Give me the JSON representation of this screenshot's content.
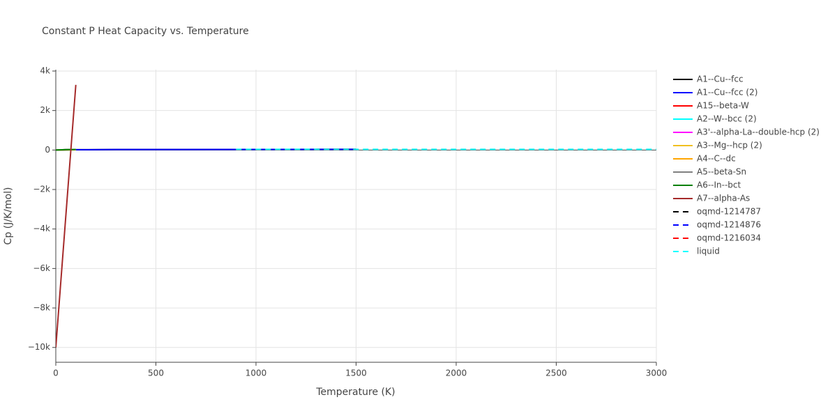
{
  "chart_data": {
    "type": "line",
    "title": "Constant P Heat Capacity vs. Temperature",
    "x_label": "Temperature (K)",
    "y_label": "Cp (J/K/mol)",
    "xlim": [
      0,
      3000
    ],
    "ylim": [
      -10750,
      4070
    ],
    "xticks": [
      0,
      500,
      1000,
      1500,
      2000,
      2500,
      3000
    ],
    "yticks": [
      {
        "value": -10000,
        "label": "−10k"
      },
      {
        "value": -8000,
        "label": "−8k"
      },
      {
        "value": -6000,
        "label": "−6k"
      },
      {
        "value": -4000,
        "label": "−4k"
      },
      {
        "value": -2000,
        "label": "−2k"
      },
      0,
      {
        "value": 2000,
        "label": "2k"
      },
      {
        "value": 4000,
        "label": "4k"
      }
    ],
    "grid": true,
    "legend": "right",
    "series": [
      {
        "name": "A1--Cu--fcc",
        "color": "#000000",
        "dash": false,
        "x": [
          0,
          100,
          300,
          1500
        ],
        "values": [
          0,
          16,
          24,
          35
        ]
      },
      {
        "name": "A1--Cu--fcc (2)",
        "color": "#0000ff",
        "dash": false,
        "x": [
          0,
          100,
          300,
          1500
        ],
        "values": [
          0,
          16,
          24,
          35
        ]
      },
      {
        "name": "A15--beta-W",
        "color": "#ff0000",
        "dash": false,
        "x": [
          0,
          50,
          100
        ],
        "values": [
          0,
          18,
          24
        ]
      },
      {
        "name": "A2--W--bcc (2)",
        "color": "#00ffff",
        "dash": false,
        "x": [
          0,
          50,
          100
        ],
        "values": [
          0,
          15,
          22
        ]
      },
      {
        "name": "A3'--alpha-La--double-hcp (2)",
        "color": "#ff00ff",
        "dash": false,
        "x": [
          0,
          50,
          100
        ],
        "values": [
          0,
          17,
          23
        ]
      },
      {
        "name": "A3--Mg--hcp (2)",
        "color": "#f0c020",
        "dash": false,
        "x": [
          0,
          50,
          100
        ],
        "values": [
          0,
          16,
          22
        ]
      },
      {
        "name": "A4--C--dc",
        "color": "#ffa500",
        "dash": false,
        "x": [
          0,
          50,
          100
        ],
        "values": [
          0,
          5,
          12
        ]
      },
      {
        "name": "A5--beta-Sn",
        "color": "#808080",
        "dash": false,
        "x": [
          0,
          50,
          100
        ],
        "values": [
          0,
          20,
          25
        ]
      },
      {
        "name": "A6--In--bct",
        "color": "#008000",
        "dash": false,
        "x": [
          0,
          50,
          100
        ],
        "values": [
          0,
          22,
          25
        ]
      },
      {
        "name": "A7--alpha-As",
        "color": "#a52a2a",
        "dash": false,
        "x": [
          0,
          100
        ],
        "values": [
          -10000,
          3300
        ]
      },
      {
        "name": "oqmd-1214787",
        "color": "#000000",
        "dash": true,
        "x": [
          900,
          1500
        ],
        "values": [
          30,
          33
        ]
      },
      {
        "name": "oqmd-1214876",
        "color": "#0000ff",
        "dash": true,
        "x": [
          900,
          1500
        ],
        "values": [
          30,
          33
        ]
      },
      {
        "name": "oqmd-1216034",
        "color": "#ff0000",
        "dash": true,
        "x": [
          900,
          1500
        ],
        "values": [
          30,
          33
        ]
      },
      {
        "name": "liquid",
        "color": "#00ffff",
        "dash": true,
        "x": [
          900,
          3000
        ],
        "values": [
          32,
          32
        ]
      }
    ]
  }
}
